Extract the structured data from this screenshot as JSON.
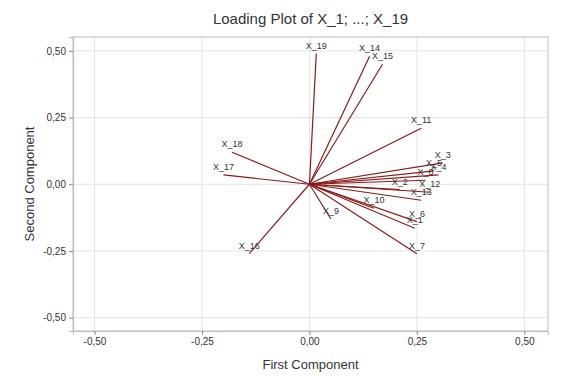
{
  "chart_data": {
    "type": "loading",
    "title": "Loading Plot of X_1; ...; X_19",
    "x_label": "First Component",
    "y_label": "Second Component",
    "labels": [
      "X_1",
      "X_2",
      "X_3",
      "X_4",
      "X_5",
      "X_6",
      "X_7",
      "X_8",
      "X_9",
      "X_10",
      "X_11",
      "X_12",
      "X_13",
      "X_14",
      "X_15",
      "X_16",
      "X_17",
      "X_18",
      "X_19"
    ],
    "x": [
      0.245,
      0.21,
      0.31,
      0.3,
      0.29,
      0.25,
      0.25,
      0.27,
      0.05,
      0.15,
      0.26,
      0.28,
      0.26,
      0.14,
      0.17,
      -0.14,
      -0.2,
      -0.18,
      0.016
    ],
    "values": [
      -0.165,
      -0.02,
      0.08,
      0.035,
      0.05,
      -0.14,
      -0.26,
      0.015,
      -0.13,
      -0.09,
      0.21,
      -0.03,
      -0.06,
      0.48,
      0.45,
      -0.26,
      0.035,
      0.12,
      0.49
    ],
    "color": "#8b1a1a",
    "xlim": [
      -0.55,
      0.555
    ],
    "ylim": [
      -0.55,
      0.552
    ],
    "xticks": [
      {
        "value": -0.5,
        "label": "-0,50"
      },
      {
        "value": -0.25,
        "label": "-0,25"
      },
      {
        "value": 0,
        "label": "0,00"
      },
      {
        "value": 0.25,
        "label": "0,25"
      },
      {
        "value": 0.5,
        "label": "0,50"
      }
    ],
    "yticks": [
      {
        "value": -0.5,
        "label": "-0,50"
      },
      {
        "value": -0.25,
        "label": "-0,25"
      },
      {
        "value": 0,
        "label": "0,00"
      },
      {
        "value": 0.25,
        "label": "0,25"
      },
      {
        "value": 0.5,
        "label": "0,50"
      }
    ],
    "grid": true
  }
}
